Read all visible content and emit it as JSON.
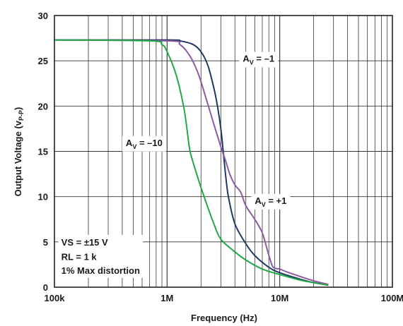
{
  "chart_data": {
    "type": "line",
    "xlabel": "Frequency (Hz)",
    "ylabel": "Output Voltage (v",
    "ylabel_sub": "P-P",
    "ylabel_close": ")",
    "x_scale": "log",
    "xlim": [
      100000,
      100000000
    ],
    "ylim": [
      0,
      30
    ],
    "grid": true,
    "x_ticks": [
      {
        "value": 100000,
        "label": "100k"
      },
      {
        "value": 1000000,
        "label": "1M"
      },
      {
        "value": 10000000,
        "label": "10M"
      },
      {
        "value": 100000000,
        "label": "100M"
      }
    ],
    "y_ticks": [
      {
        "value": 0,
        "label": "0"
      },
      {
        "value": 5,
        "label": "5"
      },
      {
        "value": 10,
        "label": "10"
      },
      {
        "value": 15,
        "label": "15"
      },
      {
        "value": 20,
        "label": "20"
      },
      {
        "value": 25,
        "label": "25"
      },
      {
        "value": 30,
        "label": "30"
      }
    ],
    "series": [
      {
        "id": "av-minus-1",
        "color": "#1f3864",
        "x": [
          100000,
          1000000,
          1300000,
          1700000,
          2000000,
          2300000,
          2600000,
          2800000,
          3000000,
          3150000,
          3300000,
          3500000,
          4000000,
          5000000,
          6000000,
          8000000,
          10000000,
          15000000,
          20000000,
          27000000
        ],
        "y": [
          27.3,
          27.3,
          27.2,
          26.8,
          26.0,
          24.5,
          22.0,
          20.0,
          17.5,
          15.0,
          12.5,
          10.0,
          7.0,
          4.8,
          3.5,
          2.2,
          1.6,
          0.9,
          0.5,
          0.25
        ]
      },
      {
        "id": "av-plus-1",
        "color": "#8e5aa5",
        "x": [
          100000,
          1000000,
          1300000,
          1600000,
          1900000,
          2200000,
          2600000,
          3000000,
          3300000,
          3600000,
          4000000,
          4500000,
          5000000,
          6000000,
          7000000,
          7800000,
          8500000,
          9000000,
          10000000,
          11500000,
          15000000,
          20000000,
          27000000
        ],
        "y": [
          27.3,
          27.2,
          26.8,
          25.5,
          23.5,
          21.0,
          18.0,
          15.5,
          14.0,
          12.5,
          11.3,
          10.5,
          9.0,
          7.5,
          6.0,
          4.0,
          2.5,
          2.1,
          2.0,
          1.7,
          1.2,
          0.7,
          0.3
        ]
      },
      {
        "id": "av-minus-10",
        "color": "#22a845",
        "x": [
          100000,
          700000,
          900000,
          1000000,
          1200000,
          1400000,
          1500000,
          1600000,
          1800000,
          2000000,
          2200000,
          2600000,
          3000000,
          4000000,
          5000000,
          7000000,
          10000000,
          15000000,
          20000000,
          27000000
        ],
        "y": [
          27.3,
          27.2,
          26.8,
          26.0,
          23.5,
          20.0,
          17.5,
          15.0,
          12.8,
          11.0,
          9.5,
          7.0,
          5.3,
          3.9,
          3.0,
          2.0,
          1.4,
          0.8,
          0.5,
          0.2
        ]
      }
    ],
    "annotations": [
      {
        "id": "label-av-minus-1",
        "main": "A",
        "sub": "V",
        "rest": " = –1",
        "x": 4700000,
        "y": 24.9
      },
      {
        "id": "label-av-minus-10",
        "main": "A",
        "sub": "V",
        "rest": " = –10",
        "x": 430000,
        "y": 15.6
      },
      {
        "id": "label-av-plus-1",
        "main": "A",
        "sub": "V",
        "rest": " = +1",
        "x": 6000000,
        "y": 9.2
      }
    ],
    "notes": [
      {
        "id": "note-vs",
        "text": "VS = ±15 V",
        "x": 115000,
        "y": 4.6
      },
      {
        "id": "note-rl",
        "text": "RL = 1 k",
        "x": 115000,
        "y": 3.0
      },
      {
        "id": "note-distortion",
        "text": "1% Max distortion",
        "x": 115000,
        "y": 1.5
      }
    ]
  }
}
